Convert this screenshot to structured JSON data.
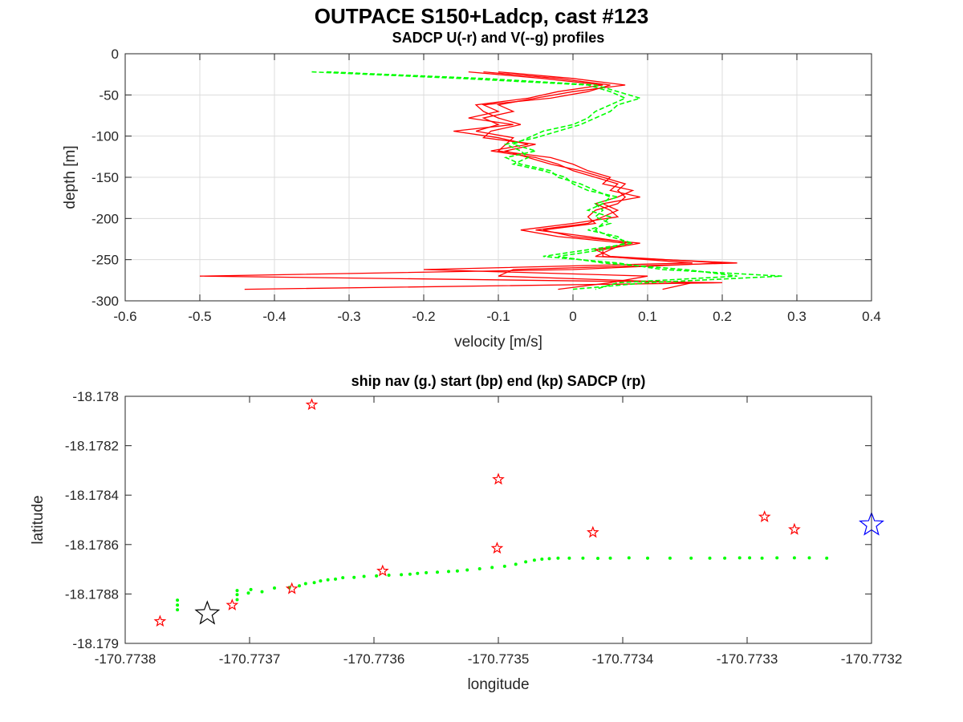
{
  "figure_title": "OUTPACE S150+Ladcp, cast #123",
  "colors": {
    "u_series": "#ff0000",
    "v_series": "#00ff00",
    "start_marker": "#0000ff",
    "end_marker": "#000000",
    "sadcp_marker": "#ff0000",
    "nav_points": "#00ff00"
  },
  "chart_data": [
    {
      "type": "line",
      "title": "SADCP U(-r) and V(--g) profiles",
      "xlabel": "velocity [m/s]",
      "ylabel": "depth [m]",
      "xlim": [
        -0.6,
        0.4
      ],
      "ylim": [
        -300,
        0
      ],
      "xticks": [
        -0.6,
        -0.5,
        -0.4,
        -0.3,
        -0.2,
        -0.1,
        0,
        0.1,
        0.2,
        0.3,
        0.4
      ],
      "xtick_labels": [
        "-0.6",
        "-0.5",
        "-0.4",
        "-0.3",
        "-0.2",
        "-0.1",
        "0",
        "0.1",
        "0.2",
        "0.3",
        "0.4"
      ],
      "yticks": [
        0,
        -50,
        -100,
        -150,
        -200,
        -250,
        -300
      ],
      "ytick_labels": [
        "0",
        "-50",
        "-100",
        "-150",
        "-200",
        "-250",
        "-300"
      ],
      "grid": true,
      "depth": [
        -22,
        -30,
        -38,
        -46,
        -54,
        -62,
        -70,
        -78,
        -86,
        -94,
        -102,
        -110,
        -118,
        -126,
        -134,
        -142,
        -150,
        -158,
        -166,
        -174,
        -182,
        -190,
        -198,
        -206,
        -214,
        -222,
        -230,
        -238,
        -246,
        -254,
        -262,
        -270,
        -278,
        -286
      ],
      "series": [
        {
          "name": "U1",
          "component": "U",
          "values": [
            -0.12,
            -0.02,
            0.05,
            0.02,
            -0.03,
            -0.12,
            -0.1,
            -0.14,
            -0.08,
            -0.16,
            -0.1,
            -0.06,
            -0.11,
            -0.05,
            -0.02,
            0.0,
            0.03,
            0.06,
            0.05,
            0.09,
            0.04,
            0.06,
            0.04,
            0.02,
            -0.05,
            0.02,
            0.08,
            0.03,
            0.05,
            0.2,
            0.0,
            -0.5,
            0.2,
            -0.44
          ]
        },
        {
          "name": "U2",
          "component": "U",
          "values": [
            -0.1,
            0.0,
            0.07,
            0.0,
            -0.05,
            -0.1,
            -0.08,
            -0.12,
            -0.1,
            -0.13,
            -0.08,
            -0.09,
            -0.1,
            -0.03,
            0.0,
            0.02,
            0.05,
            0.04,
            0.08,
            0.06,
            0.03,
            0.05,
            0.06,
            0.0,
            -0.07,
            -0.02,
            0.07,
            0.05,
            0.03,
            0.22,
            -0.08,
            -0.1,
            0.16,
            0.12
          ]
        },
        {
          "name": "U3",
          "component": "U",
          "values": [
            -0.14,
            -0.04,
            0.04,
            -0.02,
            -0.06,
            -0.13,
            -0.12,
            -0.1,
            -0.07,
            -0.11,
            -0.12,
            -0.05,
            -0.09,
            -0.06,
            -0.03,
            0.01,
            0.04,
            0.07,
            0.06,
            0.07,
            0.06,
            0.03,
            0.02,
            0.03,
            -0.04,
            0.0,
            0.09,
            0.04,
            0.04,
            0.16,
            -0.2,
            0.1,
            0.05,
            -0.02
          ]
        },
        {
          "name": "V1",
          "component": "V",
          "values": [
            -0.35,
            -0.15,
            0.02,
            0.05,
            0.07,
            0.05,
            0.03,
            0.02,
            0.0,
            -0.04,
            -0.06,
            -0.08,
            -0.05,
            -0.09,
            -0.07,
            -0.03,
            -0.02,
            0.01,
            0.03,
            0.05,
            0.04,
            0.02,
            0.05,
            0.04,
            0.03,
            0.05,
            0.08,
            0.02,
            -0.04,
            0.06,
            0.12,
            0.28,
            0.1,
            0.0
          ]
        },
        {
          "name": "V2",
          "component": "V",
          "values": [
            -0.33,
            -0.12,
            0.03,
            0.06,
            0.09,
            0.06,
            0.05,
            0.03,
            0.01,
            -0.02,
            -0.05,
            -0.09,
            -0.07,
            -0.06,
            -0.08,
            -0.04,
            -0.01,
            0.0,
            0.02,
            0.06,
            0.03,
            0.04,
            0.03,
            0.05,
            0.02,
            0.06,
            0.07,
            0.04,
            -0.02,
            0.04,
            0.15,
            0.22,
            0.06,
            0.03
          ]
        }
      ]
    },
    {
      "type": "scatter",
      "title": "ship nav (g.) start (bp) end (kp) SADCP (rp)",
      "xlabel": "longitude",
      "ylabel": "latitude",
      "xlim": [
        -170.7738,
        -170.7732
      ],
      "ylim": [
        -18.179,
        -18.178
      ],
      "xticks": [
        -170.7738,
        -170.7737,
        -170.7736,
        -170.7735,
        -170.7734,
        -170.7733,
        -170.7732
      ],
      "xtick_labels": [
        "-170.7738",
        "-170.7737",
        "-170.7736",
        "-170.7735",
        "-170.7734",
        "-170.7733",
        "-170.7732"
      ],
      "yticks": [
        -18.178,
        -18.1782,
        -18.1784,
        -18.1786,
        -18.1788,
        -18.179
      ],
      "ytick_labels": [
        "-18.178",
        "-18.1782",
        "-18.1784",
        "-18.1786",
        "-18.1788",
        "-18.179"
      ],
      "grid": false,
      "ship_nav": [
        [
          -170.773758,
          -18.178864
        ],
        [
          -170.773758,
          -18.178845
        ],
        [
          -170.773758,
          -18.178825
        ],
        [
          -170.77371,
          -18.178823
        ],
        [
          -170.77371,
          -18.178803
        ],
        [
          -170.77371,
          -18.178786
        ],
        [
          -170.773701,
          -18.178796
        ],
        [
          -170.773699,
          -18.178782
        ],
        [
          -170.77369,
          -18.178791
        ],
        [
          -170.77368,
          -18.178776
        ],
        [
          -170.773668,
          -18.178774
        ],
        [
          -170.77366,
          -18.178767
        ],
        [
          -170.773655,
          -18.178758
        ],
        [
          -170.773648,
          -18.178754
        ],
        [
          -170.773643,
          -18.178747
        ],
        [
          -170.773637,
          -18.178743
        ],
        [
          -170.773631,
          -18.17874
        ],
        [
          -170.773625,
          -18.178734
        ],
        [
          -170.773616,
          -18.178733
        ],
        [
          -170.773608,
          -18.178729
        ],
        [
          -170.773598,
          -18.178727
        ],
        [
          -170.773588,
          -18.178724
        ],
        [
          -170.773578,
          -18.178722
        ],
        [
          -170.773571,
          -18.17872
        ],
        [
          -170.773565,
          -18.178717
        ],
        [
          -170.773558,
          -18.178714
        ],
        [
          -170.773549,
          -18.178712
        ],
        [
          -170.77354,
          -18.178709
        ],
        [
          -170.773533,
          -18.178707
        ],
        [
          -170.773525,
          -18.178703
        ],
        [
          -170.773515,
          -18.178698
        ],
        [
          -170.773505,
          -18.178693
        ],
        [
          -170.773495,
          -18.178688
        ],
        [
          -170.773486,
          -18.17868
        ],
        [
          -170.773478,
          -18.17867
        ],
        [
          -170.773471,
          -18.178663
        ],
        [
          -170.773465,
          -18.178659
        ],
        [
          -170.773459,
          -18.178657
        ],
        [
          -170.773452,
          -18.178655
        ],
        [
          -170.773443,
          -18.178655
        ],
        [
          -170.773432,
          -18.178655
        ],
        [
          -170.77342,
          -18.178656
        ],
        [
          -170.77341,
          -18.178655
        ],
        [
          -170.773395,
          -18.178654
        ],
        [
          -170.77338,
          -18.178655
        ],
        [
          -170.773362,
          -18.178655
        ],
        [
          -170.773345,
          -18.178655
        ],
        [
          -170.77333,
          -18.178655
        ],
        [
          -170.773318,
          -18.178655
        ],
        [
          -170.773306,
          -18.178654
        ],
        [
          -170.773298,
          -18.178654
        ],
        [
          -170.773288,
          -18.178655
        ],
        [
          -170.773276,
          -18.178654
        ],
        [
          -170.773262,
          -18.178654
        ],
        [
          -170.77325,
          -18.178654
        ],
        [
          -170.773236,
          -18.178655
        ]
      ],
      "start_point": [
        -170.7732,
        -18.17852
      ],
      "end_point": [
        -170.773734,
        -18.17888
      ],
      "sadcp_points": [
        [
          -170.773772,
          -18.178911
        ],
        [
          -170.773714,
          -18.178845
        ],
        [
          -170.773666,
          -18.178779
        ],
        [
          -170.773593,
          -18.178707
        ],
        [
          -170.773501,
          -18.178615
        ],
        [
          -170.773424,
          -18.178551
        ],
        [
          -170.773286,
          -18.178488
        ],
        [
          -170.773262,
          -18.178539
        ],
        [
          -170.77365,
          -18.178034
        ],
        [
          -170.7735,
          -18.178336
        ]
      ]
    }
  ]
}
